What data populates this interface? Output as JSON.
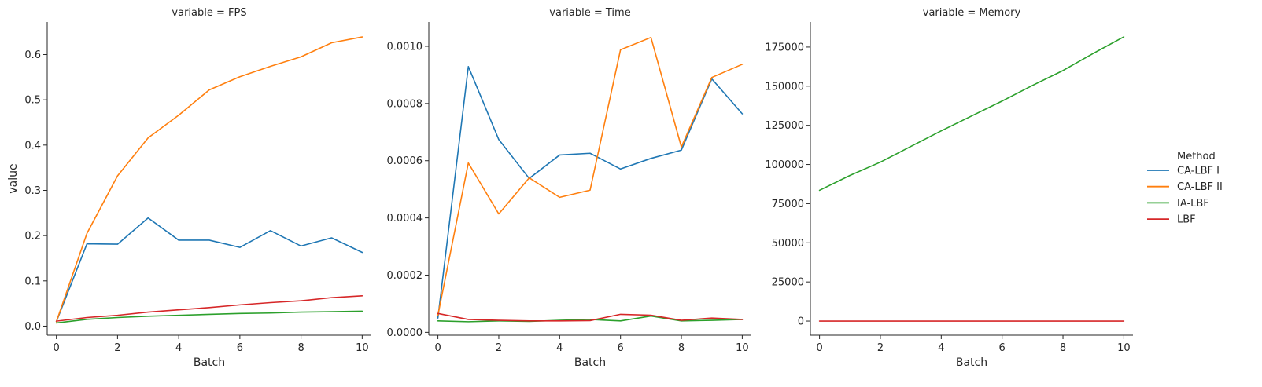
{
  "chart_data": {
    "type": "line",
    "x": [
      0,
      1,
      2,
      3,
      4,
      5,
      6,
      7,
      8,
      9,
      10
    ],
    "legend": {
      "title": "Method",
      "placement": "right",
      "entries": [
        {
          "name": "CA-LBF I",
          "color": "#1f77b4"
        },
        {
          "name": "CA-LBF II",
          "color": "#ff7f0e"
        },
        {
          "name": "IA-LBF",
          "color": "#2ca02c"
        },
        {
          "name": "LBF",
          "color": "#d62728"
        }
      ]
    },
    "ylabel": "value",
    "panels": [
      {
        "title": "variable = FPS",
        "xlabel": "Batch",
        "xlim": [
          -0.3,
          10.3
        ],
        "ylim": [
          -0.02,
          0.672
        ],
        "xticks": [
          0,
          2,
          4,
          6,
          8,
          10
        ],
        "xtick_labels": [
          "0",
          "2",
          "4",
          "6",
          "8",
          "10"
        ],
        "yticks": [
          0.0,
          0.1,
          0.2,
          0.3,
          0.4,
          0.5,
          0.6
        ],
        "ytick_labels": [
          "0.0",
          "0.1",
          "0.2",
          "0.3",
          "0.4",
          "0.5",
          "0.6"
        ],
        "series": [
          {
            "name": "CA-LBF I",
            "values": [
              0.01,
              0.182,
              0.181,
              0.239,
              0.19,
              0.19,
              0.174,
              0.211,
              0.177,
              0.195,
              0.163
            ]
          },
          {
            "name": "CA-LBF II",
            "values": [
              0.01,
              0.205,
              0.332,
              0.416,
              0.466,
              0.522,
              0.551,
              0.574,
              0.595,
              0.626,
              0.639
            ]
          },
          {
            "name": "IA-LBF",
            "values": [
              0.007,
              0.015,
              0.019,
              0.022,
              0.024,
              0.026,
              0.028,
              0.029,
              0.031,
              0.032,
              0.033
            ]
          },
          {
            "name": "LBF",
            "values": [
              0.011,
              0.019,
              0.024,
              0.031,
              0.036,
              0.041,
              0.047,
              0.052,
              0.056,
              0.063,
              0.067
            ]
          }
        ]
      },
      {
        "title": "variable = Time",
        "xlabel": "Batch",
        "xlim": [
          -0.3,
          10.3
        ],
        "ylim": [
          -1e-05,
          0.001085
        ],
        "xticks": [
          0,
          2,
          4,
          6,
          8,
          10
        ],
        "xtick_labels": [
          "0",
          "2",
          "4",
          "6",
          "8",
          "10"
        ],
        "yticks": [
          0.0,
          0.0002,
          0.0004,
          0.0006,
          0.0008,
          0.001
        ],
        "ytick_labels": [
          "0.0000",
          "0.0002",
          "0.0004",
          "0.0006",
          "0.0008",
          "0.0010"
        ],
        "series": [
          {
            "name": "CA-LBF I",
            "values": [
              5e-05,
              0.000929,
              0.000674,
              0.000538,
              0.00062,
              0.000626,
              0.000571,
              0.000608,
              0.000637,
              0.000886,
              0.000764
            ]
          },
          {
            "name": "CA-LBF II",
            "values": [
              6e-05,
              0.000592,
              0.000414,
              0.00054,
              0.000472,
              0.000497,
              0.000988,
              0.001031,
              0.000648,
              0.000891,
              0.000937
            ]
          },
          {
            "name": "IA-LBF",
            "values": [
              4e-05,
              3.7e-05,
              4e-05,
              3.8e-05,
              4.2e-05,
              4.5e-05,
              4e-05,
              5.7e-05,
              4e-05,
              4.2e-05,
              4.5e-05
            ]
          },
          {
            "name": "LBF",
            "values": [
              6.6e-05,
              4.5e-05,
              4.2e-05,
              4e-05,
              4e-05,
              4.1e-05,
              6.3e-05,
              6e-05,
              4.2e-05,
              5e-05,
              4.5e-05
            ]
          }
        ]
      },
      {
        "title": "variable = Memory",
        "xlabel": "Batch",
        "xlim": [
          -0.3,
          10.3
        ],
        "ylim": [
          -9000,
          191000
        ],
        "xticks": [
          0,
          2,
          4,
          6,
          8,
          10
        ],
        "xtick_labels": [
          "0",
          "2",
          "4",
          "6",
          "8",
          "10"
        ],
        "yticks": [
          0,
          25000,
          50000,
          75000,
          100000,
          125000,
          150000,
          175000
        ],
        "ytick_labels": [
          "0",
          "25000",
          "50000",
          "75000",
          "100000",
          "125000",
          "150000",
          "175000"
        ],
        "series": [
          {
            "name": "IA-LBF",
            "values": [
              83500,
              93000,
              101500,
              111500,
              121500,
              131000,
              140500,
              150500,
              160000,
              171000,
              181500
            ]
          },
          {
            "name": "LBF",
            "values": [
              0,
              0,
              0,
              0,
              0,
              0,
              0,
              0,
              0,
              0,
              0
            ]
          }
        ]
      }
    ]
  }
}
